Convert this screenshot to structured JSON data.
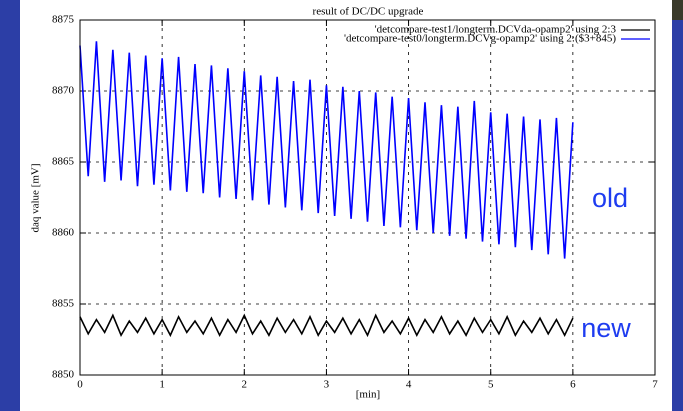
{
  "chart_data": {
    "type": "line",
    "title": "result of DC/DC upgrade",
    "xlabel": "[min]",
    "ylabel": "daq value [mV]",
    "x": [
      0,
      0.1,
      0.2,
      0.3,
      0.4,
      0.5,
      0.6,
      0.7,
      0.8,
      0.9,
      1,
      1.1,
      1.2,
      1.3,
      1.4,
      1.5,
      1.6,
      1.7,
      1.8,
      1.9,
      2,
      2.1,
      2.2,
      2.3,
      2.4,
      2.5,
      2.6,
      2.7,
      2.8,
      2.9,
      3,
      3.1,
      3.2,
      3.3,
      3.4,
      3.5,
      3.6,
      3.7,
      3.8,
      3.9,
      4,
      4.1,
      4.2,
      4.3,
      4.4,
      4.5,
      4.6,
      4.7,
      4.8,
      4.9,
      5,
      5.1,
      5.2,
      5.3,
      5.4,
      5.5,
      5.6,
      5.7,
      5.8,
      5.9,
      6
    ],
    "series": [
      {
        "name": "'detcompare-test1/longterm.DCVda-opamp2' using 2:3",
        "color": "#000000",
        "values": [
          8854.1,
          8852.9,
          8853.9,
          8853.0,
          8854.2,
          8852.8,
          8853.8,
          8853.0,
          8854.0,
          8852.9,
          8853.9,
          8852.8,
          8854.1,
          8853.0,
          8853.8,
          8852.9,
          8854.0,
          8852.8,
          8853.9,
          8853.0,
          8854.2,
          8852.9,
          8853.8,
          8852.8,
          8854.0,
          8853.0,
          8853.9,
          8852.9,
          8854.1,
          8852.8,
          8853.8,
          8853.0,
          8854.0,
          8852.9,
          8853.9,
          8852.8,
          8854.2,
          8853.0,
          8853.8,
          8852.9,
          8854.0,
          8852.8,
          8853.9,
          8853.0,
          8854.1,
          8852.9,
          8853.8,
          8852.8,
          8854.0,
          8853.0,
          8853.9,
          8852.9,
          8854.1,
          8852.8,
          8853.8,
          8853.0,
          8854.0,
          8852.9,
          8853.9,
          8852.8,
          8854.0
        ]
      },
      {
        "name": "'detcompare-test0/longterm.DCVg-opamp2' using 2:($3+845)",
        "color": "#0000ff",
        "values": [
          8873.2,
          8864.0,
          8873.5,
          8863.6,
          8872.9,
          8863.7,
          8872.7,
          8863.3,
          8872.5,
          8863.4,
          8872.3,
          8863.0,
          8872.4,
          8862.9,
          8871.9,
          8862.8,
          8871.8,
          8862.5,
          8871.6,
          8862.4,
          8871.4,
          8862.3,
          8871.1,
          8862.0,
          8871.0,
          8861.8,
          8870.7,
          8861.6,
          8870.8,
          8861.4,
          8870.4,
          8861.2,
          8870.3,
          8861.0,
          8870.0,
          8860.8,
          8869.9,
          8860.5,
          8869.6,
          8860.4,
          8869.5,
          8860.2,
          8869.2,
          8860.0,
          8869.0,
          8859.8,
          8868.9,
          8859.6,
          8869.3,
          8859.4,
          8868.5,
          8859.2,
          8868.4,
          8859.0,
          8868.2,
          8858.8,
          8868.0,
          8858.5,
          8868.1,
          8858.2,
          8867.8
        ]
      }
    ],
    "xlim": [
      0,
      7
    ],
    "xticks": [
      0,
      1,
      2,
      3,
      4,
      5,
      6,
      7
    ],
    "ylim": [
      8850,
      8875
    ],
    "yticks": [
      8850,
      8855,
      8860,
      8865,
      8870,
      8875
    ],
    "grid": true,
    "legend": "top-right",
    "annotations": [
      "old",
      "new"
    ]
  }
}
